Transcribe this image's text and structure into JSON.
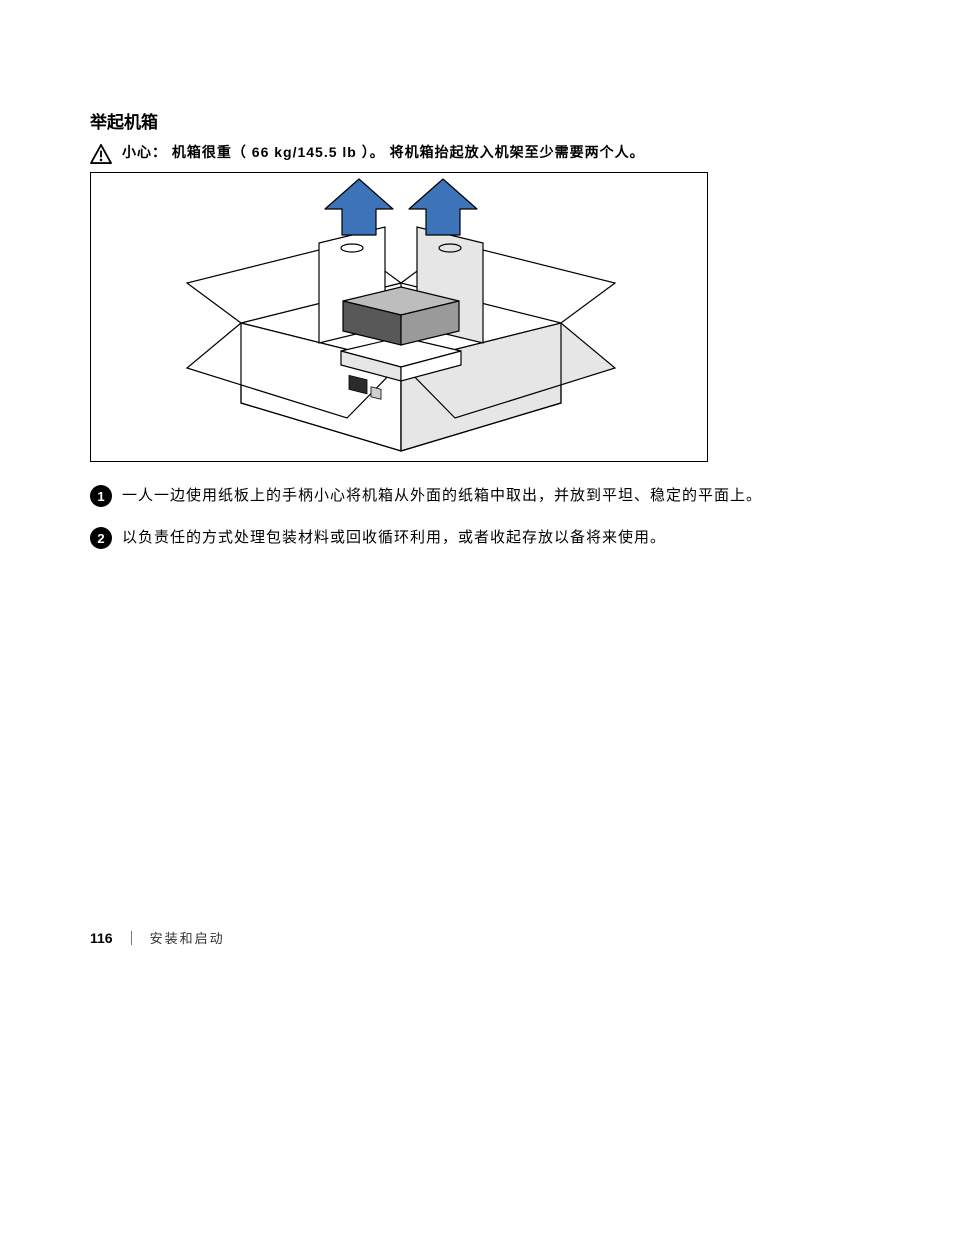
{
  "heading": "举起机箱",
  "caution": {
    "label": "小心：",
    "text": "机箱很重（ 66 kg/145.5 lb ）。 将机箱抬起放入机架至少需要两个人。"
  },
  "figure": {
    "arrow_color": "#3d73b8",
    "box_stroke": "#000000",
    "box_fill": "#ffffff",
    "shade_fill": "#e6e6e6",
    "dark_fill": "#585858",
    "stroke_width": 1.2
  },
  "steps": [
    {
      "num": "1",
      "text": "一人一边使用纸板上的手柄小心将机箱从外面的纸箱中取出，并放到平坦、稳定的平面上。"
    },
    {
      "num": "2",
      "text": "以负责任的方式处理包装材料或回收循环利用，或者收起存放以备将来使用。"
    }
  ],
  "footer": {
    "page": "116",
    "section": "安装和启动"
  }
}
